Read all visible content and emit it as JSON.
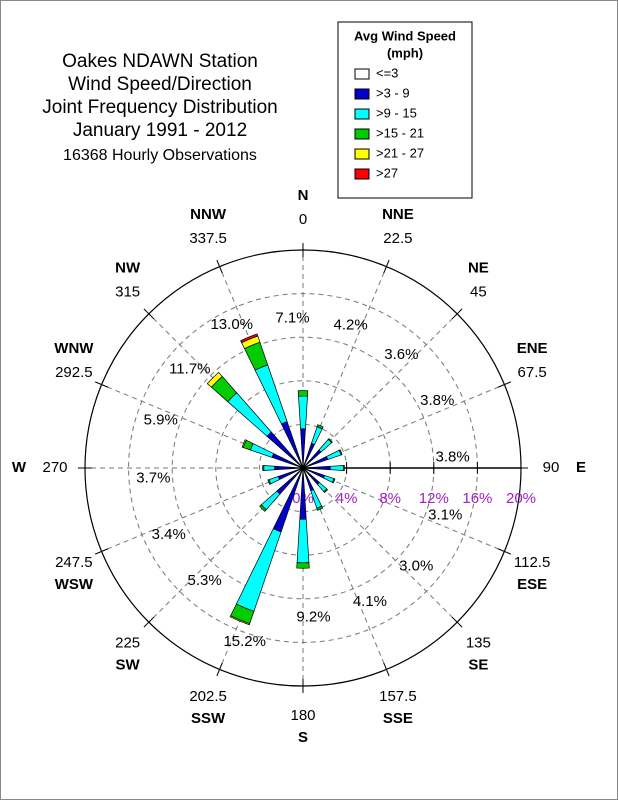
{
  "chart_data": {
    "type": "windrose",
    "title": [
      "Oakes NDAWN Station",
      "Wind Speed/Direction",
      "Joint Frequency Distribution",
      "January 1991 - 2012"
    ],
    "subtitle": "16368 Hourly Observations",
    "legend_title": "Avg Wind Speed",
    "legend_subtitle": "(mph)",
    "directions": [
      "N",
      "NNE",
      "NE",
      "ENE",
      "E",
      "ESE",
      "SE",
      "SSE",
      "S",
      "SSW",
      "SW",
      "WSW",
      "W",
      "WNW",
      "NW",
      "NNW"
    ],
    "angles": [
      0,
      22.5,
      45,
      67.5,
      90,
      112.5,
      135,
      157.5,
      180,
      202.5,
      225,
      247.5,
      270,
      292.5,
      315,
      337.5
    ],
    "totals": [
      7.1,
      4.2,
      3.6,
      3.8,
      3.8,
      3.1,
      3.0,
      4.1,
      9.2,
      15.2,
      5.3,
      3.4,
      3.7,
      5.9,
      11.7,
      13.0
    ],
    "total_labels": [
      "7.1%",
      "4.2%",
      "3.6%",
      "3.8%",
      "3.8%",
      "3.1%",
      "3.0%",
      "4.1%",
      "9.2%",
      "15.2%",
      "5.3%",
      "3.4%",
      "3.7%",
      "5.9%",
      "11.7%",
      "13.0%"
    ],
    "series": [
      {
        "name": "<=3",
        "color": "#ffffff",
        "values": [
          0.2,
          0.2,
          0.2,
          0.2,
          0.2,
          0.2,
          0.2,
          0.2,
          0.2,
          0.2,
          0.2,
          0.2,
          0.2,
          0.2,
          0.2,
          0.2
        ]
      },
      {
        "name": ">3 - 9",
        "color": "#0000cc",
        "values": [
          3.4,
          2.2,
          2.0,
          2.2,
          2.3,
          1.9,
          1.8,
          2.0,
          4.5,
          6.0,
          3.0,
          2.2,
          2.4,
          2.8,
          4.2,
          4.3
        ]
      },
      {
        "name": ">9 - 15",
        "color": "#00ffff",
        "values": [
          3.0,
          1.6,
          1.3,
          1.3,
          1.2,
          0.9,
          0.9,
          1.7,
          4.0,
          7.7,
          1.9,
          0.9,
          1.0,
          2.1,
          4.8,
          5.5
        ]
      },
      {
        "name": ">15 - 21",
        "color": "#00cc00",
        "values": [
          0.5,
          0.2,
          0.1,
          0.1,
          0.1,
          0.1,
          0.1,
          0.2,
          0.5,
          1.2,
          0.2,
          0.1,
          0.1,
          0.7,
          2.0,
          2.2
        ]
      },
      {
        "name": ">21 - 27",
        "color": "#ffff00",
        "values": [
          0,
          0,
          0,
          0,
          0,
          0,
          0,
          0,
          0,
          0.1,
          0,
          0,
          0,
          0.1,
          0.5,
          0.6
        ]
      },
      {
        "name": ">27",
        "color": "#ff0000",
        "values": [
          0,
          0,
          0,
          0,
          0,
          0,
          0,
          0,
          0,
          0,
          0,
          0,
          0,
          0,
          0,
          0.2
        ]
      }
    ],
    "rlim": [
      0,
      20
    ],
    "rticks": [
      {
        "value": 0,
        "label": "0%"
      },
      {
        "value": 4,
        "label": "4%"
      },
      {
        "value": 8,
        "label": "8%"
      },
      {
        "value": 12,
        "label": "12%"
      },
      {
        "value": 16,
        "label": "16%"
      },
      {
        "value": 20,
        "label": "20%"
      }
    ],
    "rtick_color": "#a020c0",
    "grid": true
  }
}
